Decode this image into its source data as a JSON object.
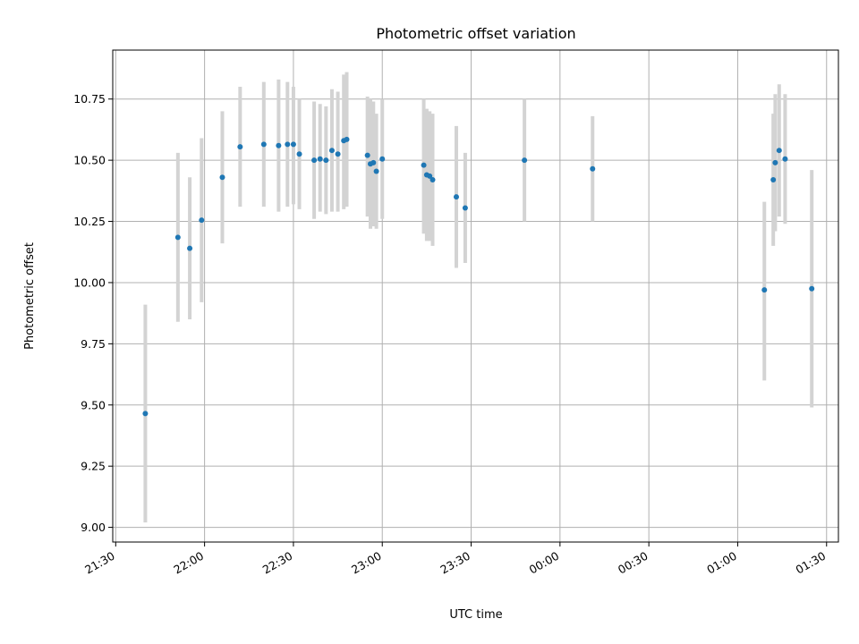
{
  "chart_data": {
    "type": "scatter",
    "title": "Photometric offset variation",
    "xlabel": "UTC time",
    "ylabel": "Photometric offset",
    "grid": true,
    "x_ticks": [
      "21:30",
      "22:00",
      "22:30",
      "23:00",
      "23:30",
      "00:00",
      "00:30",
      "01:00",
      "01:30"
    ],
    "y_ticks": [
      "9.00",
      "9.25",
      "9.50",
      "9.75",
      "10.00",
      "10.25",
      "10.50",
      "10.75"
    ],
    "xlim": [
      "21:29",
      "01:34"
    ],
    "ylim": [
      8.94,
      10.95
    ],
    "colors": {
      "point": "#1f77b4",
      "errorbar": "#d3d3d3",
      "grid": "#b0b0b0"
    },
    "points": [
      {
        "x": "21:40",
        "y": 9.465,
        "ylo": 9.02,
        "yhi": 9.91
      },
      {
        "x": "21:51",
        "y": 10.185,
        "ylo": 9.84,
        "yhi": 10.53
      },
      {
        "x": "21:55",
        "y": 10.14,
        "ylo": 9.85,
        "yhi": 10.43
      },
      {
        "x": "21:59",
        "y": 10.255,
        "ylo": 9.92,
        "yhi": 10.59
      },
      {
        "x": "22:06",
        "y": 10.43,
        "ylo": 10.16,
        "yhi": 10.7
      },
      {
        "x": "22:12",
        "y": 10.555,
        "ylo": 10.31,
        "yhi": 10.8
      },
      {
        "x": "22:20",
        "y": 10.565,
        "ylo": 10.31,
        "yhi": 10.82
      },
      {
        "x": "22:25",
        "y": 10.56,
        "ylo": 10.29,
        "yhi": 10.83
      },
      {
        "x": "22:28",
        "y": 10.565,
        "ylo": 10.31,
        "yhi": 10.82
      },
      {
        "x": "22:30",
        "y": 10.565,
        "ylo": 10.32,
        "yhi": 10.8
      },
      {
        "x": "22:32",
        "y": 10.525,
        "ylo": 10.3,
        "yhi": 10.75
      },
      {
        "x": "22:37",
        "y": 10.5,
        "ylo": 10.26,
        "yhi": 10.74
      },
      {
        "x": "22:39",
        "y": 10.505,
        "ylo": 10.29,
        "yhi": 10.73
      },
      {
        "x": "22:41",
        "y": 10.5,
        "ylo": 10.28,
        "yhi": 10.72
      },
      {
        "x": "22:43",
        "y": 10.54,
        "ylo": 10.29,
        "yhi": 10.79
      },
      {
        "x": "22:45",
        "y": 10.525,
        "ylo": 10.29,
        "yhi": 10.78
      },
      {
        "x": "22:47",
        "y": 10.58,
        "ylo": 10.3,
        "yhi": 10.85
      },
      {
        "x": "22:48",
        "y": 10.585,
        "ylo": 10.31,
        "yhi": 10.86
      },
      {
        "x": "22:55",
        "y": 10.52,
        "ylo": 10.27,
        "yhi": 10.76
      },
      {
        "x": "22:56",
        "y": 10.485,
        "ylo": 10.22,
        "yhi": 10.75
      },
      {
        "x": "22:57",
        "y": 10.49,
        "ylo": 10.23,
        "yhi": 10.74
      },
      {
        "x": "22:58",
        "y": 10.455,
        "ylo": 10.22,
        "yhi": 10.69
      },
      {
        "x": "23:00",
        "y": 10.505,
        "ylo": 10.26,
        "yhi": 10.75
      },
      {
        "x": "23:14",
        "y": 10.48,
        "ylo": 10.2,
        "yhi": 10.75
      },
      {
        "x": "23:15",
        "y": 10.44,
        "ylo": 10.17,
        "yhi": 10.71
      },
      {
        "x": "23:16",
        "y": 10.435,
        "ylo": 10.17,
        "yhi": 10.7
      },
      {
        "x": "23:17",
        "y": 10.42,
        "ylo": 10.15,
        "yhi": 10.69
      },
      {
        "x": "23:25",
        "y": 10.35,
        "ylo": 10.06,
        "yhi": 10.64
      },
      {
        "x": "23:28",
        "y": 10.305,
        "ylo": 10.08,
        "yhi": 10.53
      },
      {
        "x": "23:48",
        "y": 10.5,
        "ylo": 10.25,
        "yhi": 10.75
      },
      {
        "x": "00:11",
        "y": 10.465,
        "ylo": 10.25,
        "yhi": 10.68
      },
      {
        "x": "01:09",
        "y": 9.97,
        "ylo": 9.6,
        "yhi": 10.33
      },
      {
        "x": "01:12",
        "y": 10.42,
        "ylo": 10.15,
        "yhi": 10.69
      },
      {
        "x": "01:12:40",
        "y": 10.49,
        "ylo": 10.21,
        "yhi": 10.77
      },
      {
        "x": "01:14",
        "y": 10.54,
        "ylo": 10.27,
        "yhi": 10.81
      },
      {
        "x": "01:16",
        "y": 10.505,
        "ylo": 10.24,
        "yhi": 10.77
      },
      {
        "x": "01:25",
        "y": 9.975,
        "ylo": 9.49,
        "yhi": 10.46
      }
    ]
  }
}
